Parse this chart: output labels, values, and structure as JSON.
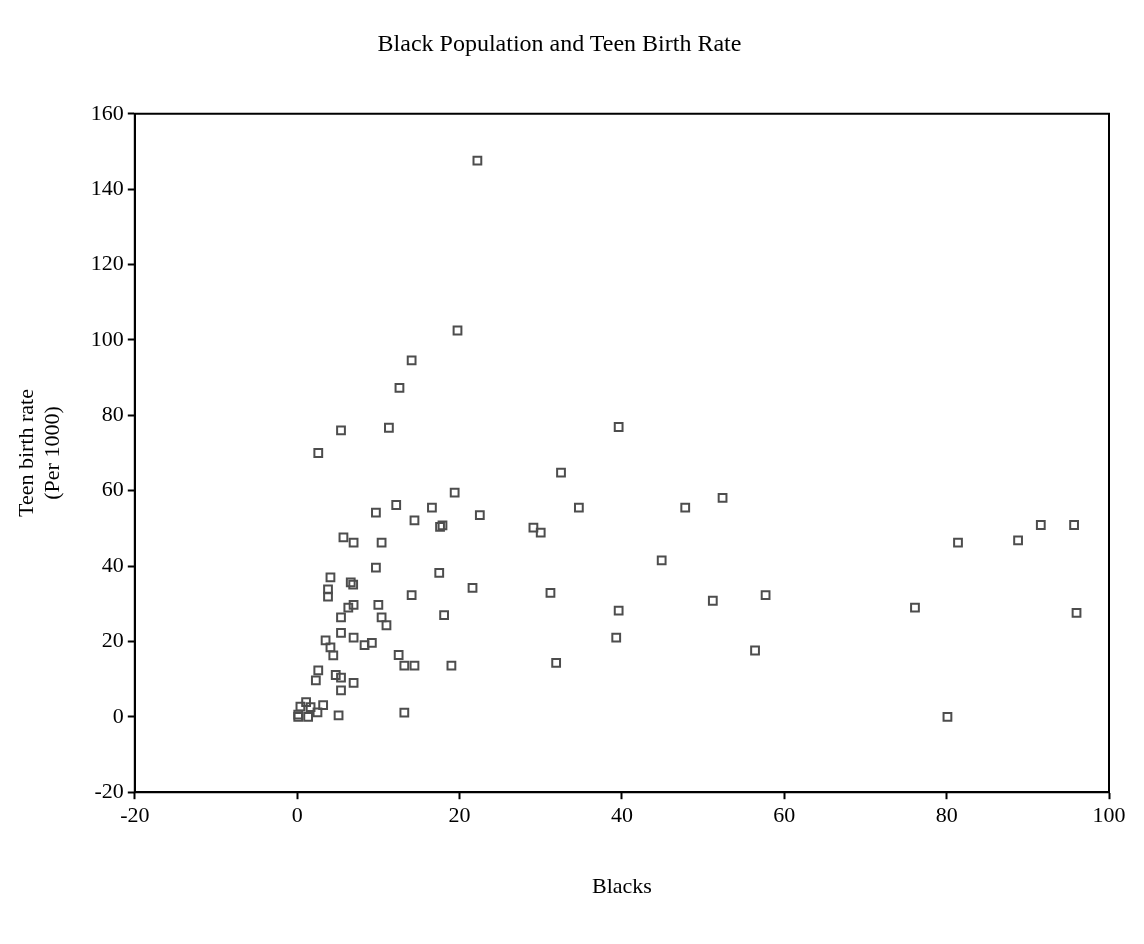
{
  "chart_data": {
    "type": "scatter",
    "title": "Black Population and Teen Birth Rate",
    "xlabel": "Blacks",
    "ylabel": "Teen birth rate\n(Per 1000)",
    "xlim": [
      -20,
      100
    ],
    "xticks": [
      -20,
      0,
      20,
      40,
      60,
      80,
      100
    ],
    "ylim": [
      -20,
      160
    ],
    "yticks": [
      -20,
      0,
      20,
      40,
      60,
      80,
      100,
      120,
      140,
      160
    ],
    "grid": false,
    "legend": false,
    "marker": "square",
    "series": [
      {
        "color": "#4d4d4d",
        "x": [
          22.2,
          19.75,
          14.1,
          12.6,
          5.4,
          11.3,
          2.6,
          19.4,
          9.7,
          12.2,
          16.6,
          14.45,
          17.6,
          17.9,
          22.5,
          5.7,
          6.95,
          10.4,
          9.7,
          17.5,
          4.1,
          6.6,
          6.9,
          3.8,
          3.8,
          21.6,
          14.1,
          6.95,
          6.3,
          10.0,
          5.4,
          10.4,
          11.0,
          18.1,
          5.4,
          6.95,
          3.5,
          8.3,
          9.2,
          4.1,
          4.45,
          12.5,
          13.2,
          14.45,
          19.0,
          2.6,
          2.3,
          4.75,
          5.4,
          6.95,
          5.4,
          1.1,
          3.2,
          1.65,
          0.4,
          2.5,
          0.13,
          0.13,
          1.35,
          5.1,
          13.2,
          32.5,
          34.7,
          29.1,
          30.0,
          47.8,
          52.4,
          44.9,
          31.2,
          39.6,
          51.2,
          57.7,
          39.3,
          56.4,
          31.9,
          39.6,
          81.4,
          88.8,
          91.6,
          95.7,
          76.1,
          96.0,
          80.1
        ],
        "values": [
          147.6,
          102.5,
          94.6,
          87.3,
          76.0,
          76.7,
          70.0,
          59.5,
          54.2,
          56.2,
          55.5,
          52.1,
          50.4,
          50.8,
          53.5,
          47.6,
          46.2,
          46.2,
          39.6,
          38.2,
          37.0,
          35.7,
          35.1,
          33.8,
          31.9,
          34.2,
          32.3,
          29.7,
          29.0,
          29.7,
          26.4,
          26.4,
          24.3,
          27.0,
          22.3,
          21.0,
          20.3,
          19.0,
          19.6,
          18.4,
          16.3,
          16.4,
          13.6,
          13.6,
          13.6,
          12.3,
          9.7,
          11.1,
          10.4,
          9.0,
          7.0,
          3.9,
          3.1,
          2.6,
          2.7,
          1.2,
          0.6,
          0,
          0,
          0.4,
          1.1,
          64.8,
          55.5,
          50.2,
          48.9,
          55.5,
          58.1,
          41.5,
          32.9,
          28.2,
          30.8,
          32.3,
          21.0,
          17.6,
          14.3,
          76.9,
          46.2,
          46.8,
          50.9,
          50.9,
          29.0,
          27.6,
          0
        ]
      }
    ]
  }
}
